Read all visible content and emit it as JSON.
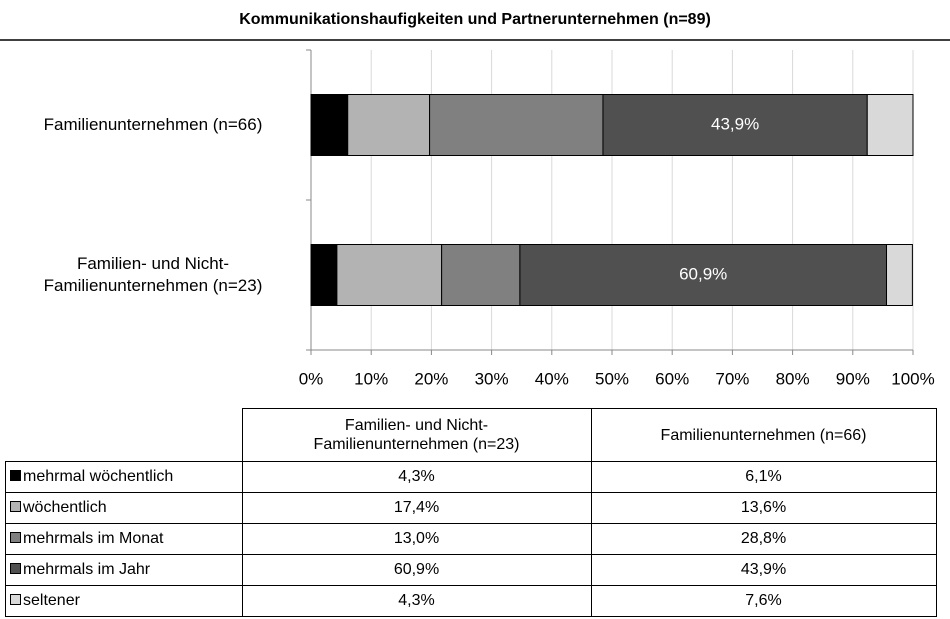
{
  "chart_data": {
    "type": "stacked_bar_horizontal",
    "title": "Kommunikationshaufigkeiten und Partnerunternehmen (n=89)",
    "categories": [
      "Familienunternehmen (n=66)",
      "Familien- und Nicht-Familienunternehmen (n=23)"
    ],
    "series": [
      {
        "name": "mehrmal wöchentlich",
        "color": "#000000",
        "values": [
          6.1,
          4.3
        ]
      },
      {
        "name": "wöchentlich",
        "color": "#b3b3b3",
        "values": [
          13.6,
          17.4
        ]
      },
      {
        "name": "mehrmals im Monat",
        "color": "#808080",
        "values": [
          28.8,
          13.0
        ]
      },
      {
        "name": "mehrmals im Jahr",
        "color": "#505050",
        "values": [
          43.9,
          60.9
        ],
        "value_labels": [
          "43,9%",
          "60,9%"
        ]
      },
      {
        "name": "seltener",
        "color": "#d9d9d9",
        "values": [
          7.6,
          4.3
        ]
      }
    ],
    "xlim": [
      0,
      100
    ],
    "xticks": [
      {
        "value": 0,
        "label": "0%"
      },
      {
        "value": 10,
        "label": "10%"
      },
      {
        "value": 20,
        "label": "20%"
      },
      {
        "value": 30,
        "label": "30%"
      },
      {
        "value": 40,
        "label": "40%"
      },
      {
        "value": 50,
        "label": "50%"
      },
      {
        "value": 60,
        "label": "60%"
      },
      {
        "value": 70,
        "label": "70%"
      },
      {
        "value": 80,
        "label": "80%"
      },
      {
        "value": 90,
        "label": "90%"
      },
      {
        "value": 100,
        "label": "100%"
      }
    ],
    "grid": true
  },
  "table": {
    "header": [
      "Familien- und Nicht-Familienunternehmen (n=23)",
      "Familienunternehmen (n=66)"
    ],
    "rows": [
      {
        "label": "mehrmal wöchentlich",
        "cells": [
          "4,3%",
          "6,1%"
        ]
      },
      {
        "label": "wöchentlich",
        "cells": [
          "17,4%",
          "13,6%"
        ]
      },
      {
        "label": "mehrmals im Monat",
        "cells": [
          "13,0%",
          "28,8%"
        ]
      },
      {
        "label": "mehrmals im Jahr",
        "cells": [
          "60,9%",
          "43,9%"
        ]
      },
      {
        "label": "seltener",
        "cells": [
          "4,3%",
          "7,6%"
        ]
      }
    ]
  }
}
